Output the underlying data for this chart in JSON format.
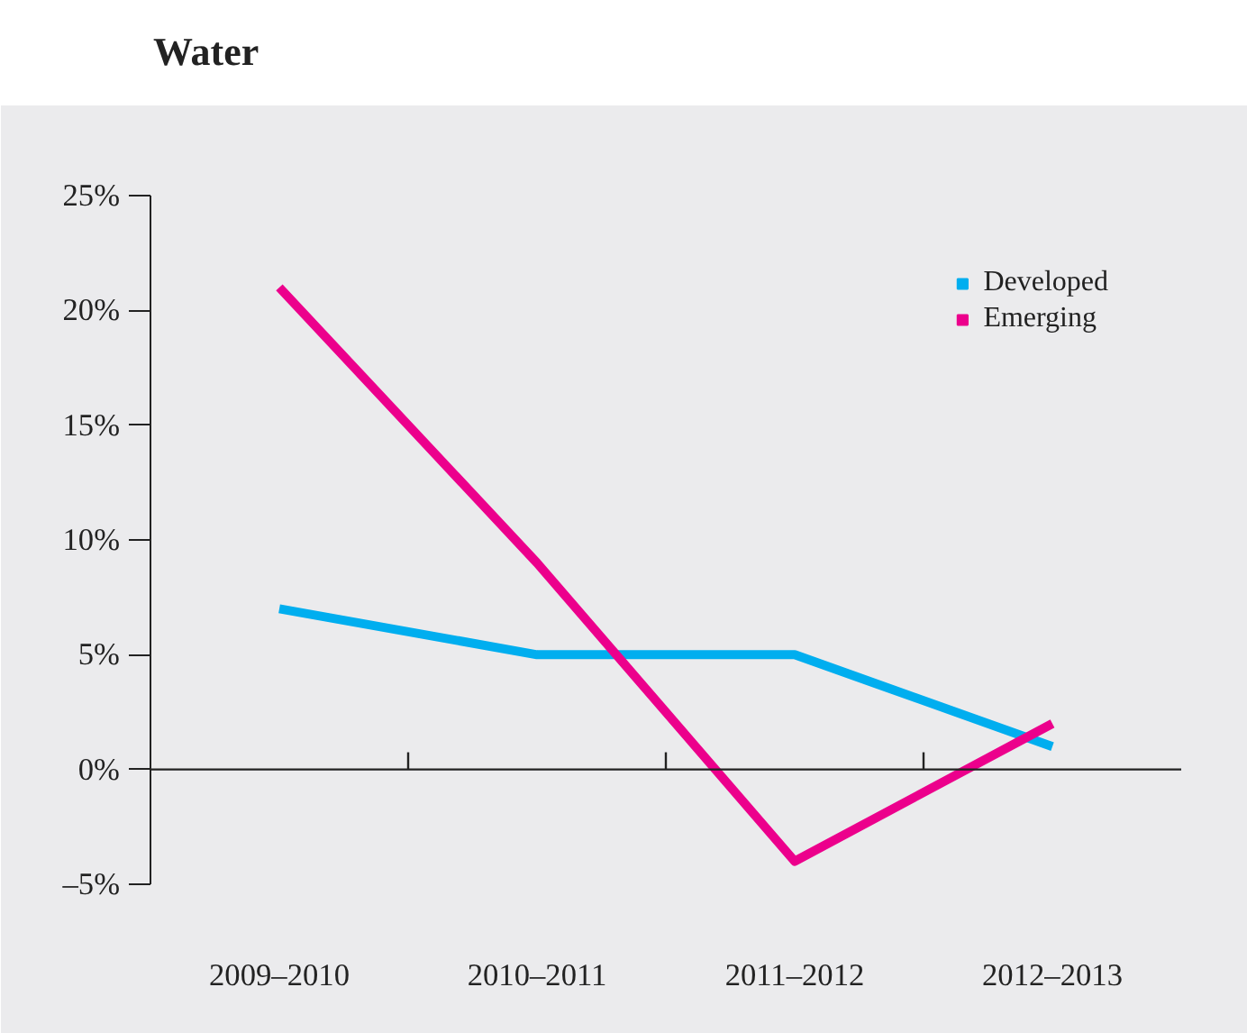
{
  "chart_data": {
    "type": "line",
    "title": "Water",
    "categories": [
      "2009–2010",
      "2010–2011",
      "2011–2012",
      "2012–2013"
    ],
    "series": [
      {
        "name": "Developed",
        "color": "#00aeef",
        "values": [
          7,
          5,
          5,
          1
        ]
      },
      {
        "name": "Emerging",
        "color": "#ec008c",
        "values": [
          21,
          9,
          -4,
          2
        ]
      }
    ],
    "ylim": [
      -5,
      25
    ],
    "yticks": [
      {
        "value": -5,
        "label": "–5%"
      },
      {
        "value": 0,
        "label": "0%"
      },
      {
        "value": 5,
        "label": "5%"
      },
      {
        "value": 10,
        "label": "10%"
      },
      {
        "value": 15,
        "label": "15%"
      },
      {
        "value": 20,
        "label": "20%"
      },
      {
        "value": 25,
        "label": "25%"
      }
    ],
    "ref_lines": [
      {
        "axis": "y",
        "value": 0,
        "color": "#222222"
      }
    ],
    "grid": false,
    "legend": "top right",
    "marker": "none",
    "line_style": "solid"
  }
}
